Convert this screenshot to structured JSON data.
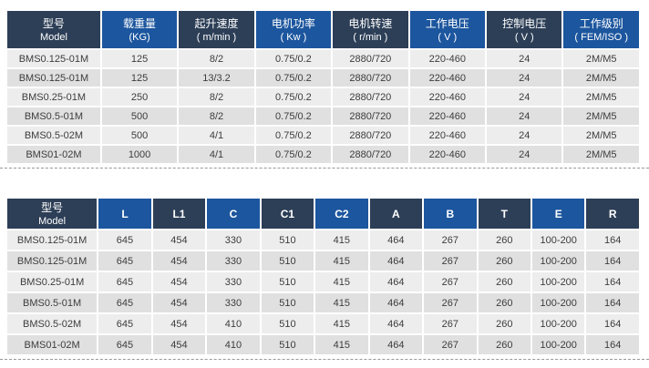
{
  "colors": {
    "header_dark": "#2d3f57",
    "header_blue": "#1c569e",
    "row_odd": "#ededed",
    "row_even": "#e0e0e0",
    "divider": "#999999"
  },
  "spec_table": {
    "columns": [
      {
        "id": "model",
        "line1": "型号",
        "line2": "Model",
        "shade": "dark"
      },
      {
        "id": "load-capacity",
        "line1": "载重量",
        "line2": "(KG)",
        "shade": "blue"
      },
      {
        "id": "lifting-speed",
        "line1": "起升速度",
        "line2": "( m/min )",
        "shade": "dark"
      },
      {
        "id": "motor-power",
        "line1": "电机功率",
        "line2": "( Kw )",
        "shade": "blue"
      },
      {
        "id": "motor-speed",
        "line1": "电机转速",
        "line2": "( r/min )",
        "shade": "dark"
      },
      {
        "id": "working-voltage",
        "line1": "工作电压",
        "line2": "( V )",
        "shade": "blue"
      },
      {
        "id": "control-voltage",
        "line1": "控制电压",
        "line2": "( V )",
        "shade": "dark"
      },
      {
        "id": "working-class",
        "line1": "工作级别",
        "line2": "( FEM/ISO )",
        "shade": "blue"
      }
    ],
    "rows": [
      [
        "BMS0.125-01M",
        "125",
        "8/2",
        "0.75/0.2",
        "2880/720",
        "220-460",
        "24",
        "2M/M5"
      ],
      [
        "BMS0.125-01M",
        "125",
        "13/3.2",
        "0.75/0.2",
        "2880/720",
        "220-460",
        "24",
        "2M/M5"
      ],
      [
        "BMS0.25-01M",
        "250",
        "8/2",
        "0.75/0.2",
        "2880/720",
        "220-460",
        "24",
        "2M/M5"
      ],
      [
        "BMS0.5-01M",
        "500",
        "8/2",
        "0.75/0.2",
        "2880/720",
        "220-460",
        "24",
        "2M/M5"
      ],
      [
        "BMS0.5-02M",
        "500",
        "4/1",
        "0.75/0.2",
        "2880/720",
        "220-460",
        "24",
        "2M/M5"
      ],
      [
        "BMS01-02M",
        "1000",
        "4/1",
        "0.75/0.2",
        "2880/720",
        "220-460",
        "24",
        "2M/M5"
      ]
    ]
  },
  "dimension_table": {
    "columns": [
      {
        "id": "model",
        "line1": "型号",
        "line2": "Model",
        "shade": "dark"
      },
      {
        "id": "l",
        "line1": "L",
        "shade": "blue"
      },
      {
        "id": "l1",
        "line1": "L1",
        "shade": "dark"
      },
      {
        "id": "c",
        "line1": "C",
        "shade": "blue"
      },
      {
        "id": "c1",
        "line1": "C1",
        "shade": "dark"
      },
      {
        "id": "c2",
        "line1": "C2",
        "shade": "blue"
      },
      {
        "id": "a",
        "line1": "A",
        "shade": "dark"
      },
      {
        "id": "b",
        "line1": "B",
        "shade": "blue"
      },
      {
        "id": "t",
        "line1": "T",
        "shade": "dark"
      },
      {
        "id": "e",
        "line1": "E",
        "shade": "blue"
      },
      {
        "id": "r",
        "line1": "R",
        "shade": "dark"
      }
    ],
    "rows": [
      [
        "BMS0.125-01M",
        "645",
        "454",
        "330",
        "510",
        "415",
        "464",
        "267",
        "260",
        "100-200",
        "164"
      ],
      [
        "BMS0.125-01M",
        "645",
        "454",
        "330",
        "510",
        "415",
        "464",
        "267",
        "260",
        "100-200",
        "164"
      ],
      [
        "BMS0.25-01M",
        "645",
        "454",
        "330",
        "510",
        "415",
        "464",
        "267",
        "260",
        "100-200",
        "164"
      ],
      [
        "BMS0.5-01M",
        "645",
        "454",
        "330",
        "510",
        "415",
        "464",
        "267",
        "260",
        "100-200",
        "164"
      ],
      [
        "BMS0.5-02M",
        "645",
        "454",
        "410",
        "510",
        "415",
        "464",
        "267",
        "260",
        "100-200",
        "164"
      ],
      [
        "BMS01-02M",
        "645",
        "454",
        "410",
        "510",
        "415",
        "464",
        "267",
        "260",
        "100-200",
        "164"
      ]
    ]
  }
}
